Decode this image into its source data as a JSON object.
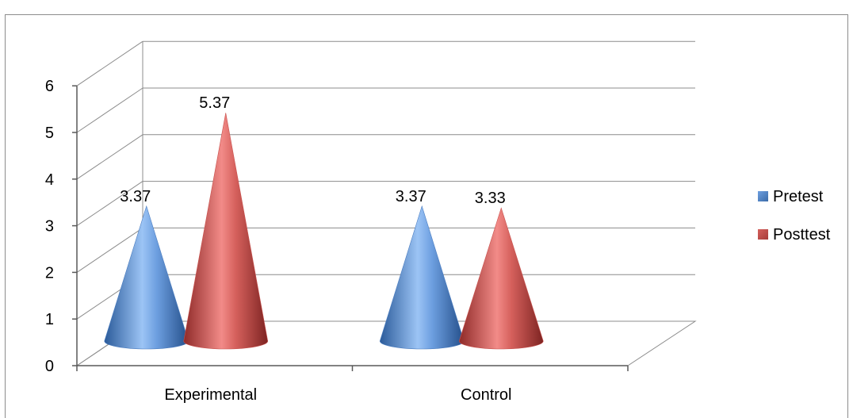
{
  "caption": "",
  "chart_data": {
    "type": "bar",
    "style": "3d-cone",
    "title": "",
    "categories": [
      "Experimental",
      "Control"
    ],
    "series": [
      {
        "name": "Pretest",
        "values": [
          3.37,
          3.37
        ],
        "labels": [
          "3.37",
          "3.37"
        ]
      },
      {
        "name": "Posttest",
        "values": [
          5.37,
          3.33
        ],
        "labels": [
          "5.37",
          "3.33"
        ]
      }
    ],
    "yticks": [
      "0",
      "1",
      "2",
      "3",
      "4",
      "5",
      "6"
    ],
    "ylim": [
      0,
      6
    ],
    "grid": true,
    "legend_position": "right",
    "colors": {
      "pretest": "#4f81bd",
      "posttest": "#c0504d",
      "grid": "#8c8c8c",
      "axis": "#595959"
    }
  }
}
